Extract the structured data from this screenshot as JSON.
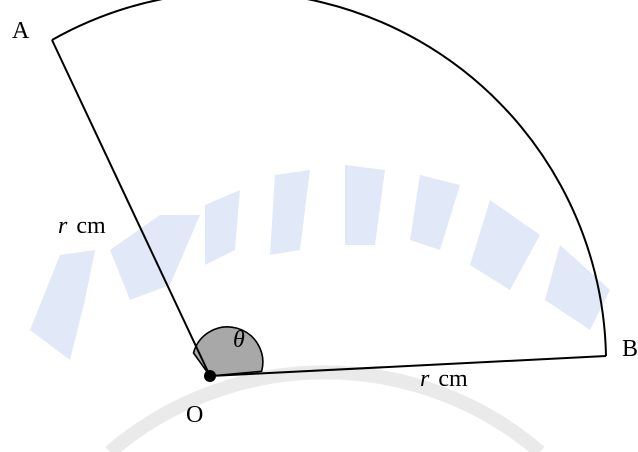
{
  "diagram": {
    "points": {
      "center": "O",
      "a": "A",
      "b": "B"
    },
    "radius_label_oa": {
      "var": "r",
      "unit": "cm"
    },
    "radius_label_ob": {
      "var": "r",
      "unit": "cm"
    },
    "angle_label": "θ",
    "watermark": "BRILLIANT"
  },
  "colors": {
    "stroke": "#000000",
    "angle_fill": "#999999",
    "watermark": "#cfd8f0"
  }
}
